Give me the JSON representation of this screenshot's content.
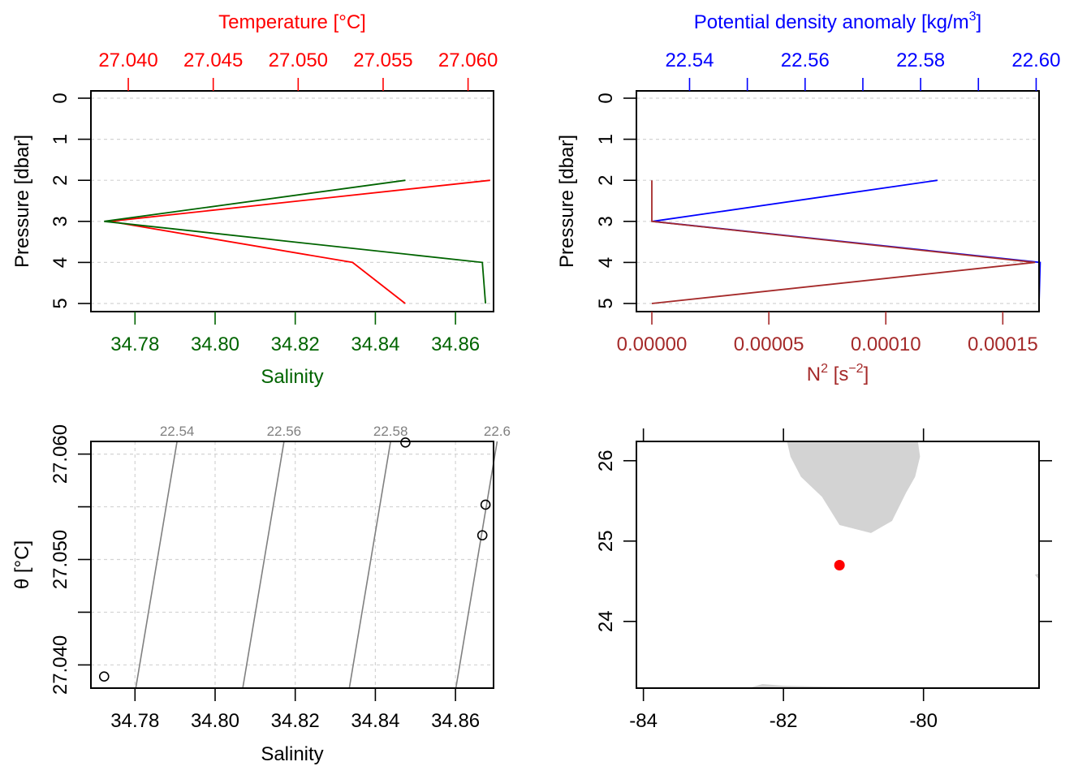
{
  "colors": {
    "temperature": "#ff0000",
    "salinity": "#006400",
    "density": "#0000ff",
    "n2": "#a52a2a",
    "grid": "#d3d3d3",
    "isopycnal": "#808080",
    "land": "#d3d3d3",
    "station": "#ff0000"
  },
  "chart_data": [
    {
      "type": "line",
      "panel": "TS profile",
      "ylabel": "Pressure [dbar]",
      "ylim": [
        5,
        0
      ],
      "y_ticks": [
        "0",
        "1",
        "2",
        "3",
        "4",
        "5"
      ],
      "pressure": [
        2,
        3,
        4,
        5
      ],
      "top_axis": {
        "label": "Temperature [°C]",
        "xlim": [
          27.0378,
          27.0615
        ],
        "ticks": [
          "27.040",
          "27.045",
          "27.050",
          "27.055",
          "27.060"
        ]
      },
      "bottom_axis": {
        "label": "Salinity",
        "xlim": [
          34.769,
          34.8695
        ],
        "ticks": [
          "34.78",
          "34.80",
          "34.82",
          "34.84",
          "34.86"
        ]
      },
      "series": [
        {
          "name": "Temperature [°C]",
          "axis": "top",
          "values": [
            27.0613,
            27.0389,
            27.0532,
            27.0563
          ]
        },
        {
          "name": "Salinity",
          "axis": "bottom",
          "values": [
            34.8475,
            34.7723,
            34.8667,
            34.8675
          ]
        }
      ],
      "grid": true
    },
    {
      "type": "line",
      "panel": "density and N2 profile",
      "ylabel": "Pressure [dbar]",
      "ylim": [
        5,
        0
      ],
      "y_ticks": [
        "0",
        "1",
        "2",
        "3",
        "4",
        "5"
      ],
      "pressure": [
        2,
        3,
        4,
        5
      ],
      "top_axis": {
        "label": "Potential density anomaly [kg/m³]",
        "xlim": [
          22.5308,
          22.6005
        ],
        "ticks": [
          "22.54",
          "22.56",
          "22.58",
          "22.60"
        ],
        "minor_ticks": [
          22.55,
          22.57,
          22.59
        ]
      },
      "bottom_axis": {
        "label": "N² [s⁻²]",
        "xlim": [
          -6.6e-06,
          0.0001655
        ],
        "ticks": [
          "0.00000",
          "0.00005",
          "0.00010",
          "0.00015"
        ]
      },
      "series": [
        {
          "name": "Potential density anomaly [kg/m³]",
          "axis": "top",
          "pressure": [
            2,
            3,
            4,
            5
          ],
          "values": [
            22.5829,
            22.5336,
            22.6007,
            22.6005
          ]
        },
        {
          "name": "N² [s⁻²]",
          "axis": "bottom",
          "pressure": [
            2,
            3,
            4,
            5
          ],
          "values": [
            0,
            0,
            0.0001638,
            0
          ]
        }
      ],
      "grid": true
    },
    {
      "type": "scatter",
      "panel": "TS diagram",
      "xlabel": "Salinity",
      "ylabel": "θ [°C]",
      "xlim": [
        34.769,
        34.8695
      ],
      "ylim": [
        27.0378,
        27.0612
      ],
      "x_ticks": [
        "34.78",
        "34.80",
        "34.82",
        "34.84",
        "34.86"
      ],
      "y_ticks": [
        "27.040",
        "27.050",
        "27.060"
      ],
      "y_grid": [
        27.04,
        27.045,
        27.05,
        27.055,
        27.06
      ],
      "points": [
        {
          "x": 34.7723,
          "y": 27.0389
        },
        {
          "x": 34.8475,
          "y": 27.0611
        },
        {
          "x": 34.8675,
          "y": 27.0552
        },
        {
          "x": 34.8667,
          "y": 27.0523
        }
      ],
      "isopycnals": [
        {
          "label": "22.54",
          "bottom": 34.7802,
          "top": 34.7905
        },
        {
          "label": "22.56",
          "bottom": 34.8069,
          "top": 34.8172
        },
        {
          "label": "22.58",
          "bottom": 34.8335,
          "top": 34.8438
        },
        {
          "label": "22.6",
          "bottom": 34.8601,
          "top": 34.8704
        }
      ],
      "grid": true
    },
    {
      "type": "map",
      "panel": "station map",
      "xlim": [
        -84.1,
        -78.35
      ],
      "ylim": [
        23.17,
        26.24
      ],
      "x_ticks": [
        "-84",
        "-82",
        "-80"
      ],
      "y_ticks": [
        "24",
        "25",
        "26"
      ],
      "station": {
        "lon": -81.2,
        "lat": 24.7
      },
      "land": [
        [
          [
            -81.95,
            26.24
          ],
          [
            -80.08,
            26.24
          ],
          [
            -80.05,
            26.05
          ],
          [
            -80.12,
            25.8
          ],
          [
            -80.25,
            25.6
          ],
          [
            -80.45,
            25.25
          ],
          [
            -80.75,
            25.1
          ],
          [
            -81.2,
            25.2
          ],
          [
            -81.45,
            25.55
          ],
          [
            -81.75,
            25.8
          ],
          [
            -81.9,
            26.05
          ]
        ],
        [
          [
            -82.5,
            23.17
          ],
          [
            -82.3,
            23.22
          ],
          [
            -82.0,
            23.2
          ],
          [
            -81.5,
            23.19
          ],
          [
            -80.5,
            23.18
          ],
          [
            -80.5,
            23.17
          ]
        ],
        [
          [
            -78.35,
            24.6
          ],
          [
            -78.41,
            24.58
          ],
          [
            -78.35,
            24.52
          ]
        ]
      ]
    }
  ]
}
